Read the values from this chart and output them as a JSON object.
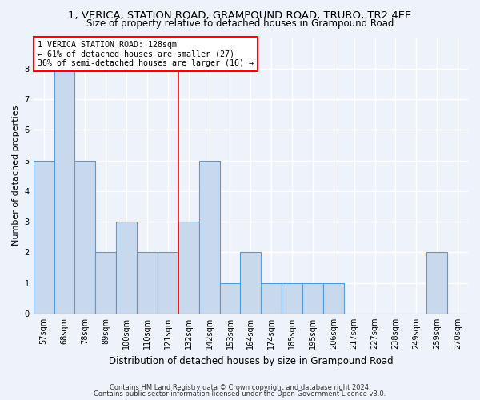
{
  "title1": "1, VERICA, STATION ROAD, GRAMPOUND ROAD, TRURO, TR2 4EE",
  "title2": "Size of property relative to detached houses in Grampound Road",
  "xlabel": "Distribution of detached houses by size in Grampound Road",
  "ylabel": "Number of detached properties",
  "footer1": "Contains HM Land Registry data © Crown copyright and database right 2024.",
  "footer2": "Contains public sector information licensed under the Open Government Licence v3.0.",
  "categories": [
    "57sqm",
    "68sqm",
    "78sqm",
    "89sqm",
    "100sqm",
    "110sqm",
    "121sqm",
    "132sqm",
    "142sqm",
    "153sqm",
    "164sqm",
    "174sqm",
    "185sqm",
    "195sqm",
    "206sqm",
    "217sqm",
    "227sqm",
    "238sqm",
    "249sqm",
    "259sqm",
    "270sqm"
  ],
  "values": [
    5,
    8,
    5,
    2,
    3,
    2,
    2,
    3,
    5,
    1,
    2,
    1,
    1,
    1,
    1,
    0,
    0,
    0,
    0,
    2,
    0
  ],
  "bar_color": "#c9d9ed",
  "bar_edge_color": "#5b9bd5",
  "highlight_line_idx": 7,
  "highlight_line_label": "1 VERICA STATION ROAD: 128sqm",
  "annotation_line1": "← 61% of detached houses are smaller (27)",
  "annotation_line2": "36% of semi-detached houses are larger (16) →",
  "ylim": [
    0,
    9
  ],
  "yticks": [
    0,
    1,
    2,
    3,
    4,
    5,
    6,
    7,
    8
  ],
  "background_color": "#eef2fa",
  "grid_color": "#ffffff",
  "title_fontsize": 9.5,
  "subtitle_fontsize": 8.5,
  "ylabel_fontsize": 8,
  "xlabel_fontsize": 8.5,
  "tick_fontsize": 7,
  "footer_fontsize": 6
}
